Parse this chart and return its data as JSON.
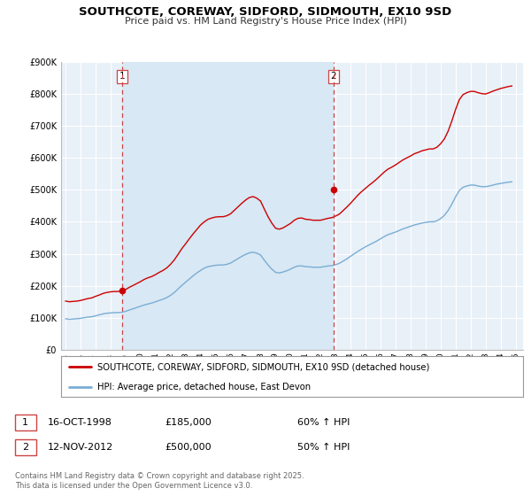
{
  "title": "SOUTHCOTE, COREWAY, SIDFORD, SIDMOUTH, EX10 9SD",
  "subtitle": "Price paid vs. HM Land Registry's House Price Index (HPI)",
  "background_color": "#ffffff",
  "plot_bg_color": "#e8f0f8",
  "grid_color": "#ffffff",
  "ylim": [
    0,
    900000
  ],
  "yticks": [
    0,
    100000,
    200000,
    300000,
    400000,
    500000,
    600000,
    700000,
    800000,
    900000
  ],
  "ytick_labels": [
    "£0",
    "£100K",
    "£200K",
    "£300K",
    "£400K",
    "£500K",
    "£600K",
    "£700K",
    "£800K",
    "£900K"
  ],
  "xlim_start": 1994.7,
  "xlim_end": 2025.5,
  "xticks": [
    1995,
    1996,
    1997,
    1998,
    1999,
    2000,
    2001,
    2002,
    2003,
    2004,
    2005,
    2006,
    2007,
    2008,
    2009,
    2010,
    2011,
    2012,
    2013,
    2014,
    2015,
    2016,
    2017,
    2018,
    2019,
    2020,
    2021,
    2022,
    2023,
    2024,
    2025
  ],
  "sale1_date": 1998.79,
  "sale1_price": 185000,
  "sale2_date": 2012.87,
  "sale2_price": 500000,
  "sale1_date_str": "16-OCT-1998",
  "sale1_price_str": "£185,000",
  "sale1_hpi_str": "60% ↑ HPI",
  "sale2_date_str": "12-NOV-2012",
  "sale2_price_str": "£500,000",
  "sale2_hpi_str": "50% ↑ HPI",
  "red_line_color": "#cc0000",
  "blue_line_color": "#7aadd4",
  "vline_color": "#cc4444",
  "shaded_color": "#d8e8f4",
  "legend_label_red": "SOUTHCOTE, COREWAY, SIDFORD, SIDMOUTH, EX10 9SD (detached house)",
  "legend_label_blue": "HPI: Average price, detached house, East Devon",
  "footer_text": "Contains HM Land Registry data © Crown copyright and database right 2025.\nThis data is licensed under the Open Government Licence v3.0.",
  "hpi_data_x": [
    1995.0,
    1995.25,
    1995.5,
    1995.75,
    1996.0,
    1996.25,
    1996.5,
    1996.75,
    1997.0,
    1997.25,
    1997.5,
    1997.75,
    1998.0,
    1998.25,
    1998.5,
    1998.75,
    1999.0,
    1999.25,
    1999.5,
    1999.75,
    2000.0,
    2000.25,
    2000.5,
    2000.75,
    2001.0,
    2001.25,
    2001.5,
    2001.75,
    2002.0,
    2002.25,
    2002.5,
    2002.75,
    2003.0,
    2003.25,
    2003.5,
    2003.75,
    2004.0,
    2004.25,
    2004.5,
    2004.75,
    2005.0,
    2005.25,
    2005.5,
    2005.75,
    2006.0,
    2006.25,
    2006.5,
    2006.75,
    2007.0,
    2007.25,
    2007.5,
    2007.75,
    2008.0,
    2008.25,
    2008.5,
    2008.75,
    2009.0,
    2009.25,
    2009.5,
    2009.75,
    2010.0,
    2010.25,
    2010.5,
    2010.75,
    2011.0,
    2011.25,
    2011.5,
    2011.75,
    2012.0,
    2012.25,
    2012.5,
    2012.75,
    2013.0,
    2013.25,
    2013.5,
    2013.75,
    2014.0,
    2014.25,
    2014.5,
    2014.75,
    2015.0,
    2015.25,
    2015.5,
    2015.75,
    2016.0,
    2016.25,
    2016.5,
    2016.75,
    2017.0,
    2017.25,
    2017.5,
    2017.75,
    2018.0,
    2018.25,
    2018.5,
    2018.75,
    2019.0,
    2019.25,
    2019.5,
    2019.75,
    2020.0,
    2020.25,
    2020.5,
    2020.75,
    2021.0,
    2021.25,
    2021.5,
    2021.75,
    2022.0,
    2022.25,
    2022.5,
    2022.75,
    2023.0,
    2023.25,
    2023.5,
    2023.75,
    2024.0,
    2024.25,
    2024.5,
    2024.75
  ],
  "hpi_data_y": [
    97000,
    95000,
    96000,
    97000,
    98000,
    100000,
    102000,
    103000,
    106000,
    109000,
    112000,
    114000,
    115000,
    116000,
    116000,
    117000,
    120000,
    124000,
    128000,
    132000,
    136000,
    140000,
    143000,
    146000,
    150000,
    154000,
    158000,
    163000,
    170000,
    179000,
    190000,
    201000,
    211000,
    221000,
    231000,
    240000,
    248000,
    255000,
    260000,
    262000,
    264000,
    265000,
    265000,
    267000,
    271000,
    278000,
    285000,
    292000,
    298000,
    303000,
    305000,
    302000,
    296000,
    280000,
    265000,
    252000,
    242000,
    240000,
    243000,
    247000,
    252000,
    258000,
    262000,
    262000,
    260000,
    259000,
    258000,
    258000,
    258000,
    260000,
    262000,
    263000,
    266000,
    270000,
    277000,
    284000,
    292000,
    300000,
    308000,
    315000,
    322000,
    328000,
    334000,
    340000,
    347000,
    354000,
    360000,
    364000,
    368000,
    373000,
    378000,
    382000,
    386000,
    390000,
    393000,
    396000,
    398000,
    400000,
    400000,
    403000,
    410000,
    420000,
    435000,
    455000,
    478000,
    498000,
    508000,
    512000,
    515000,
    515000,
    512000,
    510000,
    510000,
    512000,
    515000,
    518000,
    520000,
    522000,
    524000,
    525000
  ],
  "red_data_x": [
    1995.0,
    1995.25,
    1995.5,
    1995.75,
    1996.0,
    1996.25,
    1996.5,
    1996.75,
    1997.0,
    1997.25,
    1997.5,
    1997.75,
    1998.0,
    1998.25,
    1998.5,
    1998.75,
    1999.0,
    1999.25,
    1999.5,
    1999.75,
    2000.0,
    2000.25,
    2000.5,
    2000.75,
    2001.0,
    2001.25,
    2001.5,
    2001.75,
    2002.0,
    2002.25,
    2002.5,
    2002.75,
    2003.0,
    2003.25,
    2003.5,
    2003.75,
    2004.0,
    2004.25,
    2004.5,
    2004.75,
    2005.0,
    2005.25,
    2005.5,
    2005.75,
    2006.0,
    2006.25,
    2006.5,
    2006.75,
    2007.0,
    2007.25,
    2007.5,
    2007.75,
    2008.0,
    2008.25,
    2008.5,
    2008.75,
    2009.0,
    2009.25,
    2009.5,
    2009.75,
    2010.0,
    2010.25,
    2010.5,
    2010.75,
    2011.0,
    2011.25,
    2011.5,
    2011.75,
    2012.0,
    2012.25,
    2012.5,
    2012.75,
    2013.0,
    2013.25,
    2013.5,
    2013.75,
    2014.0,
    2014.25,
    2014.5,
    2014.75,
    2015.0,
    2015.25,
    2015.5,
    2015.75,
    2016.0,
    2016.25,
    2016.5,
    2016.75,
    2017.0,
    2017.25,
    2017.5,
    2017.75,
    2018.0,
    2018.25,
    2018.5,
    2018.75,
    2019.0,
    2019.25,
    2019.5,
    2019.75,
    2020.0,
    2020.25,
    2020.5,
    2020.75,
    2021.0,
    2021.25,
    2021.5,
    2021.75,
    2022.0,
    2022.25,
    2022.5,
    2022.75,
    2023.0,
    2023.25,
    2023.5,
    2023.75,
    2024.0,
    2024.25,
    2024.5,
    2024.75
  ],
  "red_data_y": [
    152000,
    150000,
    151000,
    152000,
    154000,
    157000,
    160000,
    162000,
    167000,
    171000,
    176000,
    179000,
    181000,
    182000,
    182000,
    184000,
    188000,
    195000,
    201000,
    207000,
    213000,
    220000,
    225000,
    229000,
    235000,
    242000,
    248000,
    256000,
    267000,
    281000,
    298000,
    316000,
    331000,
    347000,
    362000,
    376000,
    390000,
    400000,
    408000,
    412000,
    415000,
    416000,
    416000,
    419000,
    425000,
    436000,
    447000,
    458000,
    468000,
    476000,
    479000,
    474000,
    465000,
    440000,
    416000,
    396000,
    380000,
    377000,
    381000,
    388000,
    395000,
    405000,
    411000,
    412000,
    408000,
    407000,
    405000,
    405000,
    405000,
    408000,
    411000,
    413000,
    418000,
    424000,
    435000,
    446000,
    458000,
    471000,
    484000,
    495000,
    505000,
    515000,
    524000,
    534000,
    545000,
    556000,
    565000,
    571000,
    578000,
    586000,
    594000,
    600000,
    606000,
    613000,
    617000,
    622000,
    625000,
    628000,
    628000,
    633000,
    644000,
    659000,
    683000,
    715000,
    751000,
    782000,
    798000,
    804000,
    808000,
    808000,
    804000,
    801000,
    800000,
    804000,
    809000,
    813000,
    817000,
    820000,
    823000,
    825000
  ]
}
